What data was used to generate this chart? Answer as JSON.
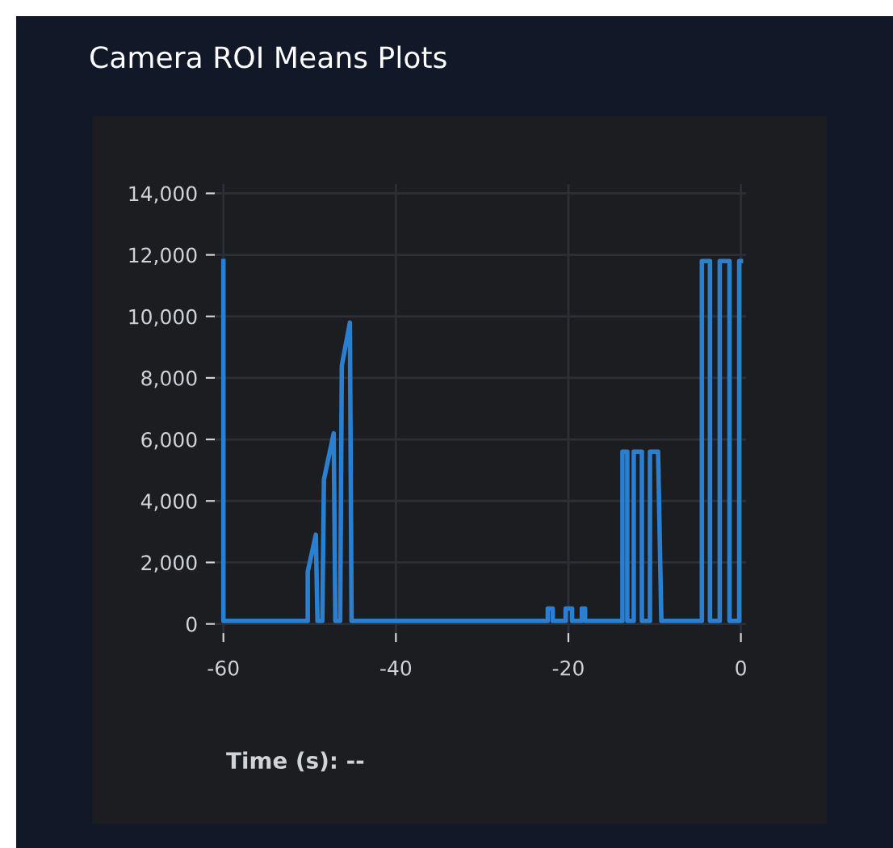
{
  "chart_data": {
    "type": "line",
    "title": "Camera ROI Means Plots",
    "annotations": [
      "Time (s): --"
    ],
    "series": [
      {
        "color": "#2a7fd0",
        "x": [
          -60,
          -60,
          -50.22,
          -50.22,
          -49.28,
          -49.09,
          -48.53,
          -48.34,
          -47.21,
          -47.02,
          -46.46,
          -46.27,
          -45.33,
          -45.14,
          -22.39,
          -22.39,
          -21.82,
          -21.82,
          -20.32,
          -20.32,
          -19.57,
          -19.57,
          -18.44,
          -18.44,
          -18.06,
          -18.06,
          -13.73,
          -13.73,
          -13.17,
          -13.17,
          -12.42,
          -12.42,
          -11.48,
          -11.48,
          -10.54,
          -10.54,
          -9.6,
          -9.22,
          -4.52,
          -4.52,
          -3.58,
          -3.58,
          -2.45,
          -2.45,
          -1.32,
          -1.32,
          -0.19,
          -0.19,
          0
        ],
        "values": [
          11800,
          100,
          100,
          1700,
          2900,
          100,
          100,
          4700,
          6200,
          100,
          100,
          8400,
          9800,
          100,
          100,
          500,
          500,
          100,
          100,
          500,
          500,
          100,
          100,
          500,
          500,
          100,
          100,
          5600,
          5600,
          100,
          100,
          5600,
          5600,
          100,
          100,
          5600,
          5600,
          100,
          100,
          11800,
          11800,
          100,
          100,
          11800,
          11800,
          100,
          100,
          11800,
          11800
        ]
      }
    ],
    "xlim": [
      -61,
      0.6
    ],
    "xticks": [
      {
        "value": -60,
        "label": "-60"
      },
      {
        "value": -40,
        "label": "-40"
      },
      {
        "value": -20,
        "label": "-20"
      },
      0
    ],
    "ylim": [
      -300,
      14300
    ],
    "yticks": [
      0,
      {
        "value": 2000,
        "label": "2,000"
      },
      {
        "value": 4000,
        "label": "4,000"
      },
      {
        "value": 6000,
        "label": "6,000"
      },
      {
        "value": 8000,
        "label": "8,000"
      },
      {
        "value": 10000,
        "label": "10,000"
      },
      {
        "value": 12000,
        "label": "12,000"
      },
      {
        "value": 14000,
        "label": "14,000"
      }
    ],
    "grid": true,
    "legend": false,
    "marker": "none",
    "line_style": "solid"
  }
}
